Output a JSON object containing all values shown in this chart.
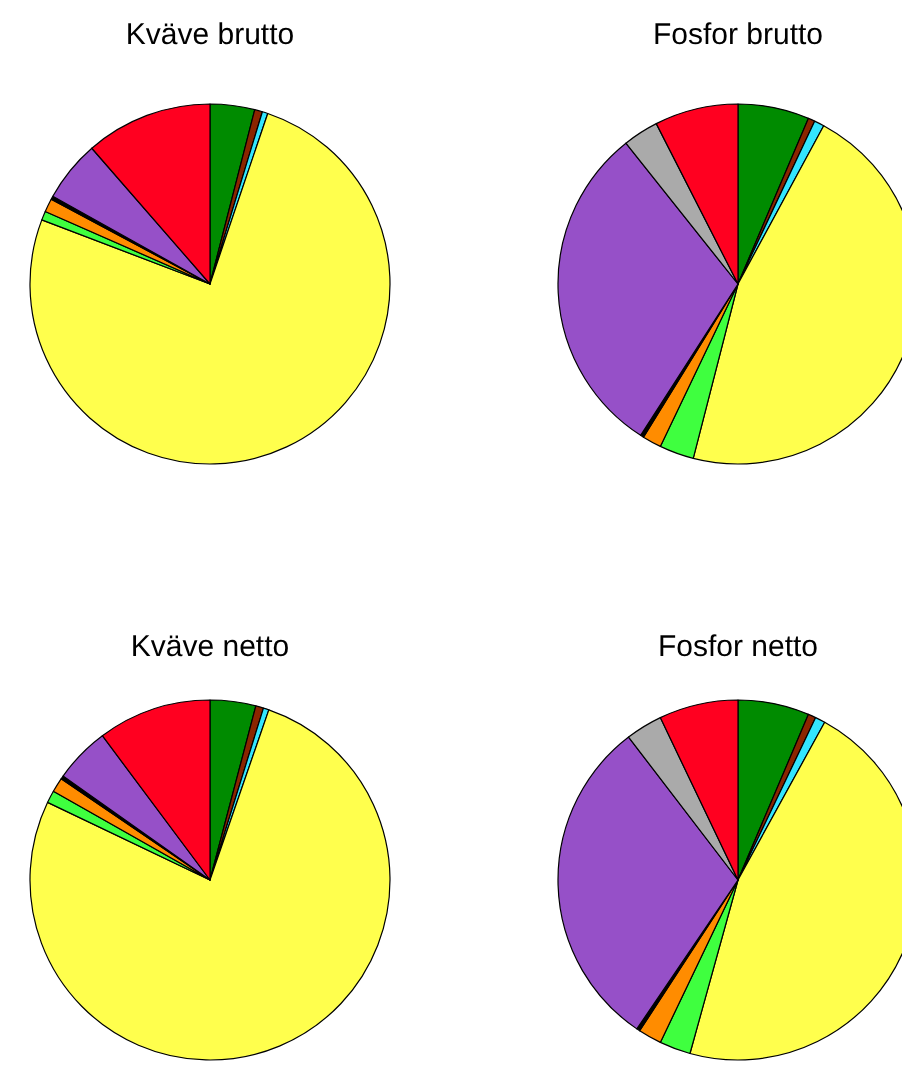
{
  "chart_data": [
    {
      "type": "pie",
      "title": "Kväve brutto",
      "categories": [
        null,
        null,
        null,
        null,
        null,
        null,
        null,
        null,
        null
      ],
      "values": [
        4.0,
        0.7,
        0.5,
        75.6,
        0.8,
        1.2,
        0.3,
        5.5,
        11.4
      ],
      "colors": [
        "#008b00",
        "#8b2500",
        "#33e6ff",
        "#ffff4d",
        "#3fff3f",
        "#ff8c00",
        "#000000",
        "#9650c8",
        "#ff0020"
      ]
    },
    {
      "type": "pie",
      "title": "Fosfor brutto",
      "categories": [
        null,
        null,
        null,
        null,
        null,
        null,
        null,
        null,
        null,
        null
      ],
      "values": [
        6.4,
        0.6,
        0.9,
        46.1,
        3.1,
        1.7,
        0.3,
        30.2,
        3.2,
        7.5
      ],
      "colors": [
        "#008b00",
        "#8b2500",
        "#33e6ff",
        "#ffff4d",
        "#3fff3f",
        "#ff8c00",
        "#000000",
        "#9650c8",
        "#aaaaaa",
        "#ff0020"
      ]
    },
    {
      "type": "pie",
      "title": "Kväve netto",
      "categories": [
        null,
        null,
        null,
        null,
        null,
        null,
        null,
        null,
        null
      ],
      "values": [
        4.1,
        0.7,
        0.5,
        76.8,
        1.1,
        1.3,
        0.3,
        5.0,
        10.2
      ],
      "colors": [
        "#008b00",
        "#8b2500",
        "#33e6ff",
        "#ffff4d",
        "#3fff3f",
        "#ff8c00",
        "#000000",
        "#9650c8",
        "#ff0020"
      ]
    },
    {
      "type": "pie",
      "title": "Fosfor netto",
      "categories": [
        null,
        null,
        null,
        null,
        null,
        null,
        null,
        null,
        null,
        null
      ],
      "values": [
        6.4,
        0.7,
        0.9,
        46.3,
        2.8,
        2.1,
        0.3,
        30.1,
        3.3,
        7.1
      ],
      "colors": [
        "#008b00",
        "#8b2500",
        "#33e6ff",
        "#ffff4d",
        "#3fff3f",
        "#ff8c00",
        "#000000",
        "#9650c8",
        "#aaaaaa",
        "#ff0020"
      ]
    }
  ]
}
